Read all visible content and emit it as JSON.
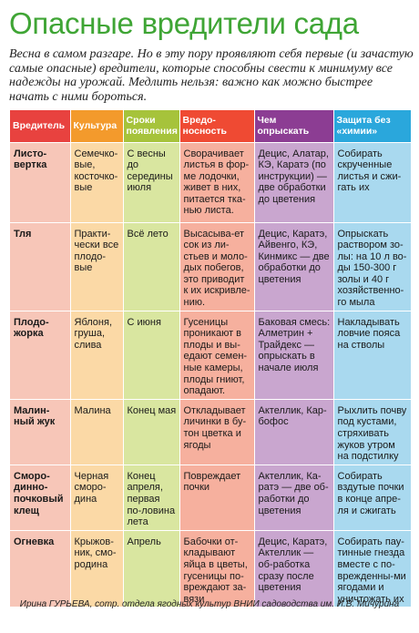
{
  "title": "Опасные вредители сада",
  "intro": "Весна в самом разгаре. Но в эту пору проявляют себя первые (и зачастую самые опасные) вредители, которые способны свести к минимуму все надежды на урожай. Медлить нельзя: важно как можно быстрее начать с ними бороться.",
  "columns": [
    {
      "label": "Вредитель",
      "header_color": "#e8423f",
      "cell_color": "#f7c6b8"
    },
    {
      "label": "Культура",
      "header_color": "#f39a2c",
      "cell_color": "#fbd9a6"
    },
    {
      "label": "Сроки появления",
      "header_color": "#a6c33b",
      "cell_color": "#d9e6a0"
    },
    {
      "label": "Вредо-носность",
      "header_color": "#ef4a33",
      "cell_color": "#f6b09e"
    },
    {
      "label": "Чем опрыскать",
      "header_color": "#8c3d93",
      "cell_color": "#c9a6cf"
    },
    {
      "label": "Защита без «химии»",
      "header_color": "#2aa7dc",
      "cell_color": "#a9d9ef"
    }
  ],
  "rows": [
    {
      "pest": "Листо-вертка",
      "crop": "Семечко-вые, косточко-вые",
      "timing": "С весны до середины июля",
      "harm": "Сворачивает листья в фор-ме лодочки, живет в них, питается тка-нью листа.",
      "spray": "Децис, Алатар, КЭ, Каратэ (по инструкции) — две обработки до цветения",
      "organic": "Собирать скрученные листья и сжи-гать их"
    },
    {
      "pest": "Тля",
      "crop": "Практи-чески все плодо-вые",
      "timing": "Всё лето",
      "harm": "Высасыва-ет сок из ли-стьев и моло-дых побегов, это приводит к их искривле-нию.",
      "spray": "Децис, Каратэ, Айвенго, КЭ, Кинмикс — две обработки до цветения",
      "organic": "Опрыскать раствором зо-лы: на 10 л во-ды 150-300 г золы и 40 г хозяйственно-го мыла"
    },
    {
      "pest": "Плодо-жорка",
      "crop": "Яблоня, груша, слива",
      "timing": "С июня",
      "harm": "Гусеницы проникают в плоды и вы-едают семен-ные камеры, плоды гниют, опадают.",
      "spray": "Баковая смесь: Алметрин + Трайдекс — опрыскать в начале июля",
      "organic": "Накладывать ловчие пояса на стволы"
    },
    {
      "pest": "Малин-ный жук",
      "crop": "Малина",
      "timing": "Конец мая",
      "harm": "Откладывает личинки в бу-тон цветка и ягоды",
      "spray": "Актеллик, Кар-бофос",
      "organic": "Рыхлить почву под кустами, стряхивать жуков утром на подстилку"
    },
    {
      "pest": "Сморо-динно-почковый клещ",
      "crop": "Черная сморо-дина",
      "timing": "Конец апреля, первая по-ловина лета",
      "harm": "Повреждает почки",
      "spray": "Актеллик, Ка-ратэ — две об-работки до цветения",
      "organic": "Собирать вздутые почки в конце апре-ля и сжигать"
    },
    {
      "pest": "Огневка",
      "crop": "Крыжов-ник, смо-родина",
      "timing": "Апрель",
      "harm": "Бабочки от-кладывают яйца в цветы, гусеницы по-вреждают за-вязи",
      "spray": "Децис, Каратэ, Актеллик — об-работка сразу после цветения",
      "organic": "Собирать пау-тинные гнезда вместе с по-врежденны-ми ягодами и уничтожать их"
    }
  ],
  "footer": "Ирина ГУРЬЕВА, сотр. отдела ягодных культур ВНИИ садоводства им. И.В. Мичурина"
}
